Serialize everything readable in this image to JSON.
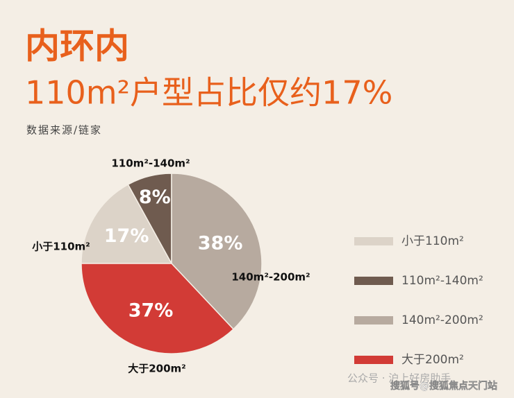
{
  "chart_data": {
    "type": "pie",
    "title": "内环内",
    "subtitle": "110m²户型占比仅约17%",
    "source": "数据来源/链家",
    "categories": [
      "小于110m²",
      "110m²-140m²",
      "140m²-200m²",
      "大于200m²"
    ],
    "values": [
      17,
      8,
      38,
      37
    ],
    "value_labels": [
      "17%",
      "8%",
      "38%",
      "37%"
    ],
    "slice_labels": [
      "小于110m²",
      "110m²-140m²",
      "140m²-200m²",
      "大于200m²"
    ],
    "colors": [
      "#dcd3c8",
      "#6f5b4f",
      "#b7aa9f",
      "#d23b36"
    ],
    "watermarks": [
      "公众号 · 沪上好房助手",
      "搜狐号@搜狐焦点天门站"
    ]
  }
}
